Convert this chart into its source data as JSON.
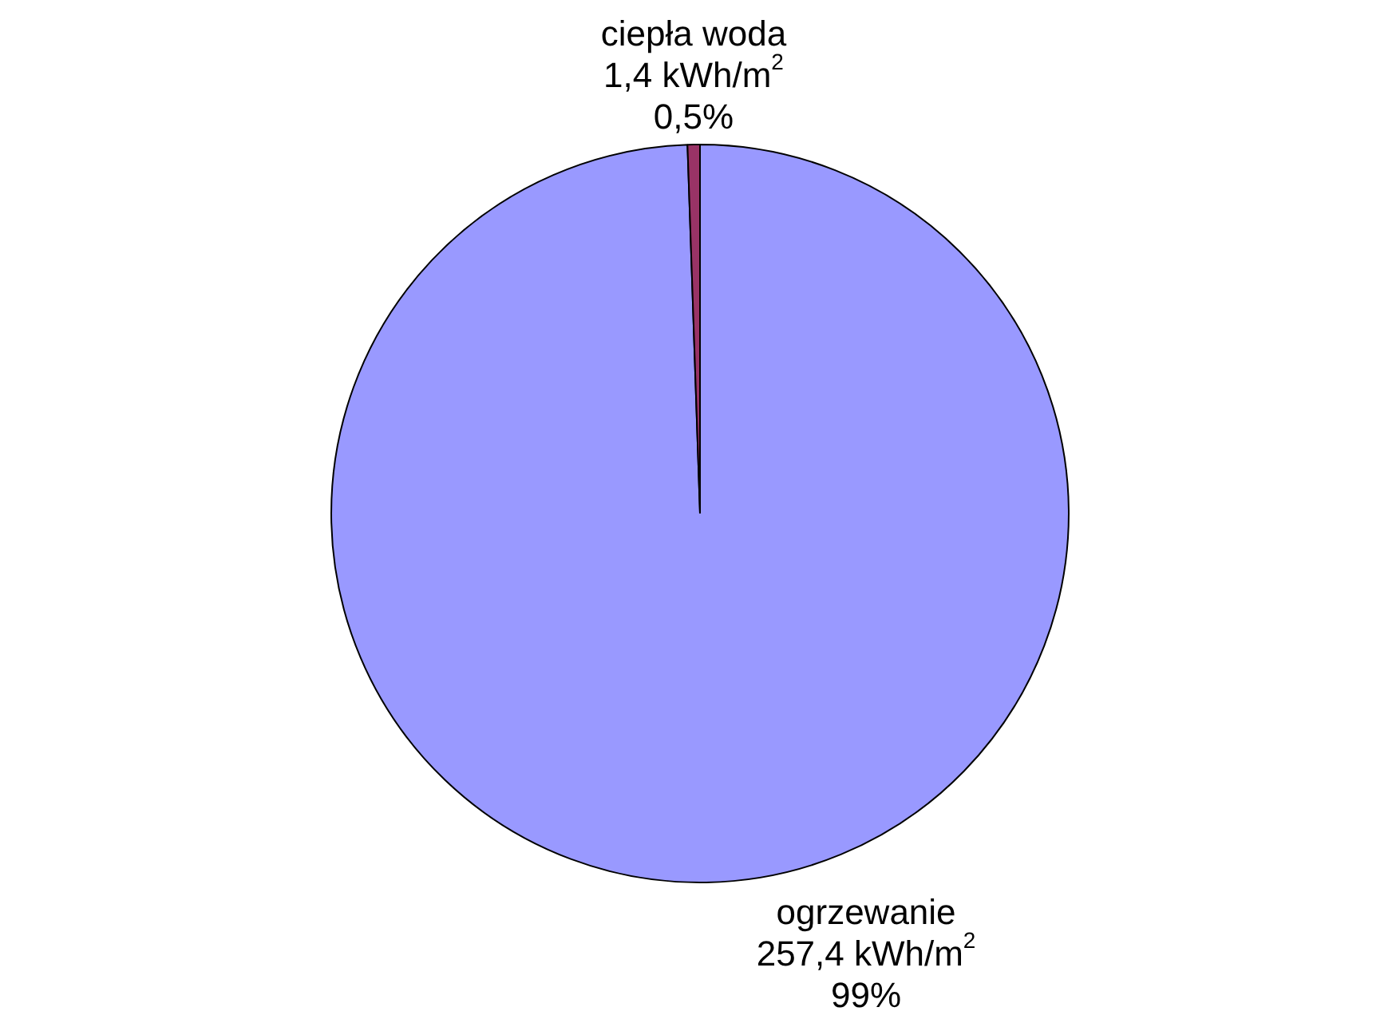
{
  "chart_data": {
    "type": "pie",
    "categories": [
      "ogrzewanie",
      "ciepła woda"
    ],
    "values": [
      257.4,
      1.4
    ],
    "colors": [
      "#9999ff",
      "#993366"
    ],
    "value_labels": [
      "257,4 kWh/m$^{2}$",
      "1,4 kWh/m$^{2}$"
    ],
    "annotations": [
      "99%",
      "0,5%"
    ],
    "legend": false
  }
}
